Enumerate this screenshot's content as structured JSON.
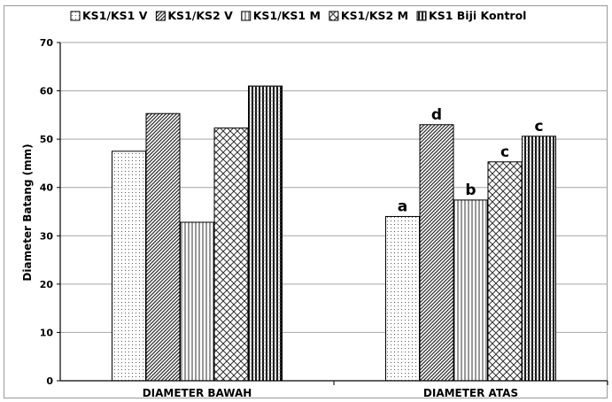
{
  "chart_data": {
    "type": "bar",
    "ylabel": "Diameter Batang (mm)",
    "ylim": [
      0,
      70
    ],
    "yticks": [
      "0",
      "10",
      "20",
      "30",
      "40",
      "50",
      "60",
      "70"
    ],
    "grid": true,
    "legend_position": "top",
    "categories": [
      "DIAMETER BAWAH",
      "DIAMETER ATAS"
    ],
    "series": [
      {
        "name": "KS1/KS1 V",
        "values": [
          47.5,
          34.0
        ],
        "pattern": "dots"
      },
      {
        "name": "KS1/KS2 V",
        "values": [
          55.3,
          53.0
        ],
        "pattern": "diag"
      },
      {
        "name": "KS1/KS1 M",
        "values": [
          32.8,
          37.4
        ],
        "pattern": "vlines"
      },
      {
        "name": "KS1/KS2 M",
        "values": [
          52.3,
          45.3
        ],
        "pattern": "cross"
      },
      {
        "name": "KS1 Biji Kontrol",
        "values": [
          61.0,
          50.6
        ],
        "pattern": "dense"
      }
    ],
    "annotations": [
      {
        "category": 1,
        "series": 0,
        "text": "a"
      },
      {
        "category": 1,
        "series": 1,
        "text": "d"
      },
      {
        "category": 1,
        "series": 2,
        "text": "b"
      },
      {
        "category": 1,
        "series": 3,
        "text": "c"
      },
      {
        "category": 1,
        "series": 4,
        "text": "c"
      }
    ]
  }
}
